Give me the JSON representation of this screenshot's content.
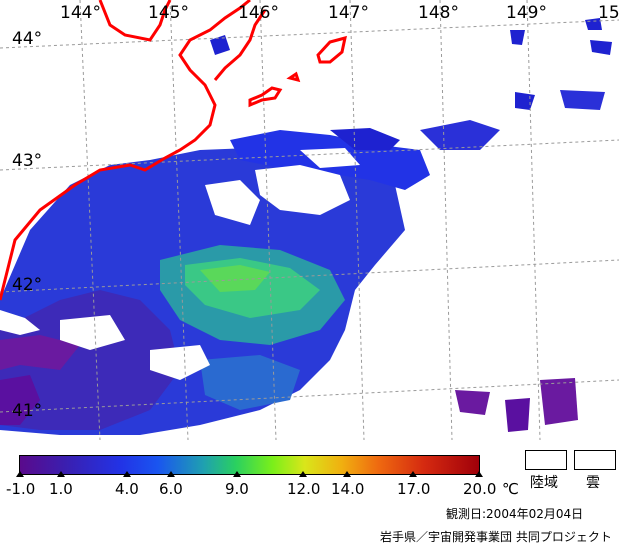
{
  "map": {
    "lon_labels": [
      "144°",
      "145°",
      "146°",
      "147°",
      "148°",
      "149°",
      "15"
    ],
    "lat_labels": [
      "44°",
      "43°",
      "42°",
      "41°"
    ],
    "land_label": "陸域",
    "cloud_label": "雲",
    "colorbar_ticks": [
      "-1.0",
      "1.0",
      "4.0",
      "6.0",
      "9.0",
      "12.0",
      "14.0",
      "17.0",
      "20.0"
    ],
    "unit": "℃",
    "observed": "観測日:2004年02月04日",
    "credit": "岩手県／宇宙開発事業団 共同プロジェクト"
  },
  "colors": {
    "coast": "#ff0000",
    "graticule": "#9a9a9a",
    "cold": "#5a0a8c",
    "mid": "#2233e6",
    "warm": "#2ad060",
    "hot": "#a0000a"
  }
}
